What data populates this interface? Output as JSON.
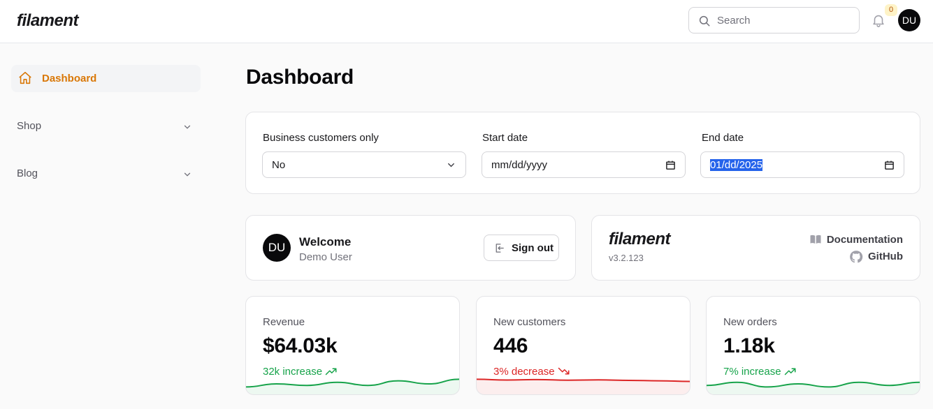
{
  "brand": {
    "name": "filament"
  },
  "topbar": {
    "search_placeholder": "Search",
    "notifications_count": "0",
    "avatar_initials": "DU"
  },
  "sidebar": {
    "active_item": {
      "label": "Dashboard",
      "icon": "home-icon"
    },
    "groups": [
      {
        "label": "Shop",
        "icon": "chevron-down-icon"
      },
      {
        "label": "Blog",
        "icon": "chevron-down-icon"
      }
    ]
  },
  "page": {
    "title": "Dashboard"
  },
  "filters": {
    "business_label": "Business customers only",
    "business_value": "No",
    "start_label": "Start date",
    "start_value": "mm/dd/yyyy",
    "end_label": "End date",
    "end_value": {
      "month": "01",
      "day": "dd",
      "year": "2025"
    }
  },
  "welcome": {
    "initials": "DU",
    "title": "Welcome",
    "user": "Demo User",
    "signout_label": "Sign out"
  },
  "filament_info": {
    "logo": "filament",
    "version": "v3.2.123",
    "documentation_label": "Documentation",
    "github_label": "GitHub"
  },
  "stats": [
    {
      "label": "Revenue",
      "value": "$64.03k",
      "description": "32k increase",
      "trend": "up",
      "color": "#16a34a",
      "sparkline": [
        3,
        5,
        4,
        6,
        4,
        7,
        5,
        8
      ]
    },
    {
      "label": "New customers",
      "value": "446",
      "description": "3% decrease",
      "trend": "down",
      "color": "#dc2626",
      "sparkline": [
        8,
        7.5,
        7.8,
        7.4,
        7.6,
        7.3,
        7.0,
        6.6
      ]
    },
    {
      "label": "New orders",
      "value": "1.18k",
      "description": "7% increase",
      "trend": "up",
      "color": "#16a34a",
      "sparkline": [
        4,
        6,
        3,
        5,
        3,
        6,
        4,
        6
      ]
    }
  ],
  "colors": {
    "accent": "#d97706",
    "increase": "#16a34a",
    "decrease": "#dc2626"
  }
}
